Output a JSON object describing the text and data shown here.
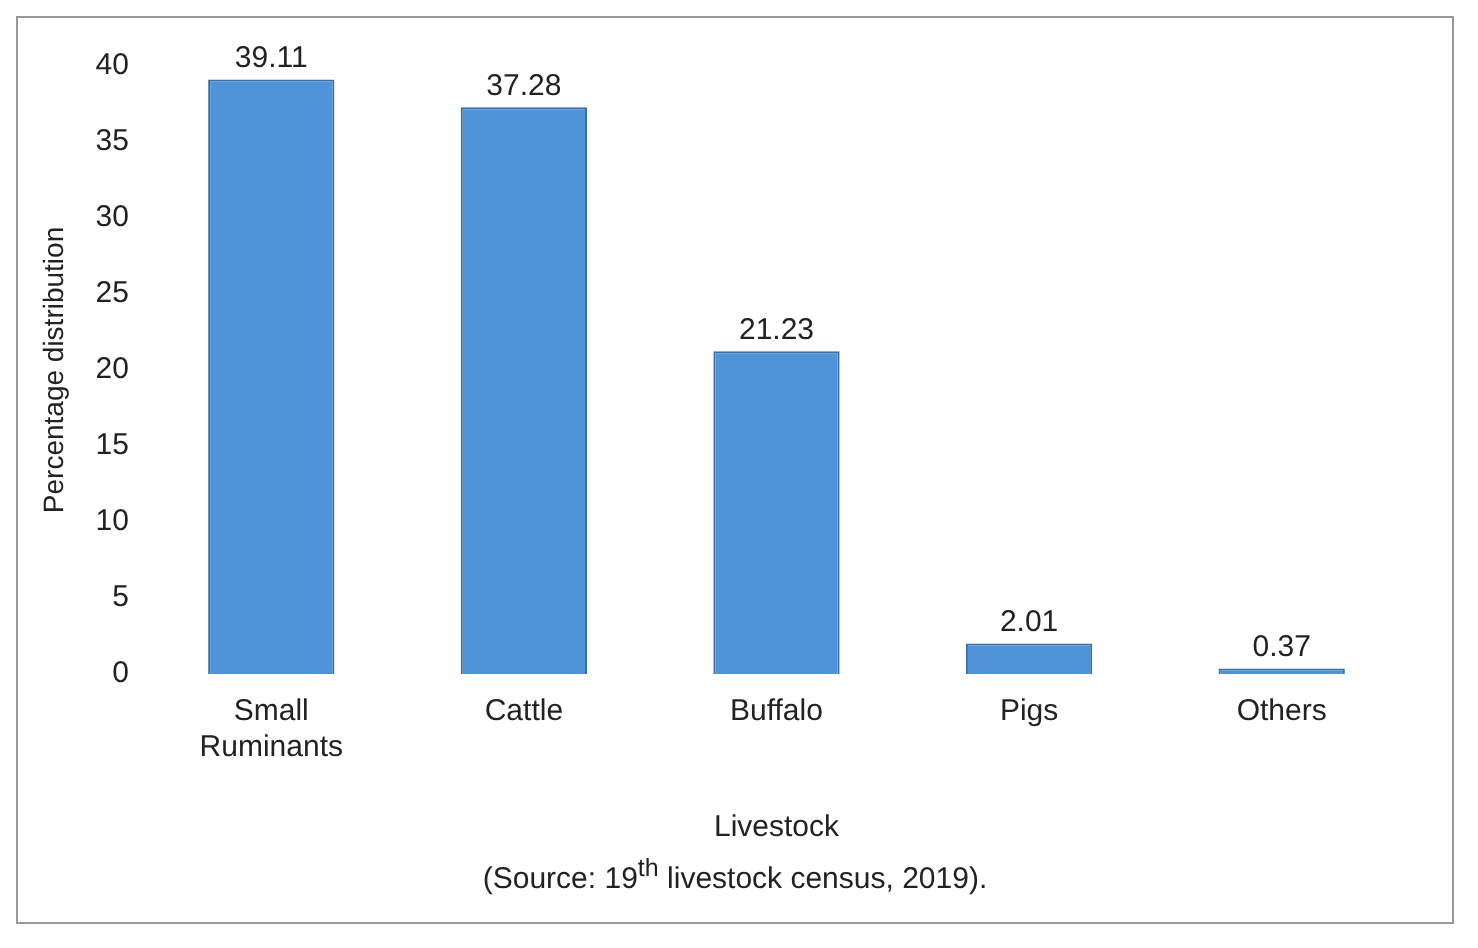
{
  "chart_data": {
    "type": "bar",
    "xlabel": "Livestock",
    "ylabel": "Percentage distribution",
    "categories": [
      "Small Ruminants",
      "Cattle",
      "Buffalo",
      "Pigs",
      "Others"
    ],
    "values": [
      39.11,
      37.28,
      21.23,
      2.01,
      0.37
    ],
    "color": "#4f94d8",
    "data_labels": true,
    "ylim": [
      0,
      40
    ],
    "yticks": [
      0,
      5,
      10,
      15,
      20,
      25,
      30,
      35,
      40
    ],
    "grid": false,
    "legend": false,
    "annotations": [
      "(Source: 19$^{th}$ livestock census, 2019)."
    ]
  }
}
